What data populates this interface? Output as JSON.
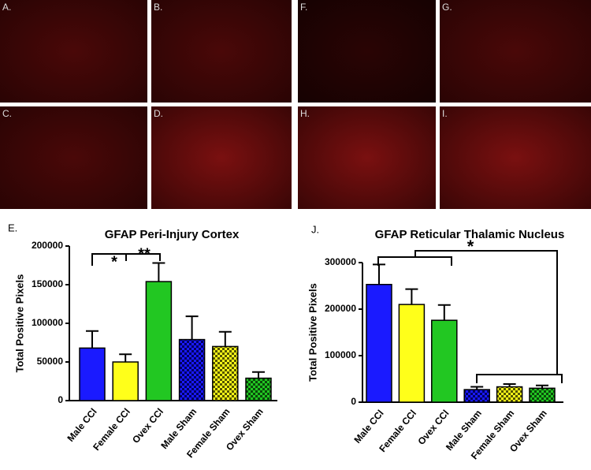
{
  "image_panels": [
    "A.",
    "B.",
    "C.",
    "D.",
    "F.",
    "G.",
    "H.",
    "I."
  ],
  "chart_data": [
    {
      "type": "bar",
      "panel_label": "E.",
      "title": "GFAP  Peri-Injury Cortex",
      "y_label": "Total  Positive Pixels",
      "categories": [
        "Male CCl",
        "Female CCl",
        "Ovex CCl",
        "Male Sham",
        "Female Sham",
        "Ovex Sham"
      ],
      "values": [
        68000,
        50000,
        154000,
        79000,
        70000,
        29000
      ],
      "errors": [
        22000,
        10000,
        24000,
        30000,
        19000,
        8000
      ],
      "colors": [
        "#1a1aff",
        "#ffff1a",
        "#22c722",
        "#1a1aff",
        "#ffff1a",
        "#22c722"
      ],
      "hatched": [
        false,
        false,
        false,
        true,
        true,
        true
      ],
      "ylim": [
        0,
        200000
      ],
      "yticks": [
        0,
        50000,
        100000,
        150000,
        200000
      ],
      "annotations": [
        "*",
        "**"
      ]
    },
    {
      "type": "bar",
      "panel_label": "J.",
      "title": "GFAP Reticular Thalamic Nucleus",
      "y_label": "Total  Positive Pixels",
      "categories": [
        "Male CCl",
        "Female CCl",
        "Ovex CCl",
        "Male Sham",
        "Female Sham",
        "Ovex Sham"
      ],
      "values": [
        253000,
        210000,
        176000,
        27000,
        33000,
        30000
      ],
      "errors": [
        43000,
        33000,
        33000,
        6000,
        6000,
        6000
      ],
      "colors": [
        "#1a1aff",
        "#ffff1a",
        "#22c722",
        "#1a1aff",
        "#ffff1a",
        "#22c722"
      ],
      "hatched": [
        false,
        false,
        false,
        true,
        true,
        true
      ],
      "ylim": [
        0,
        300000
      ],
      "yticks": [
        0,
        100000,
        200000,
        300000
      ],
      "annotations": [
        "*"
      ]
    }
  ]
}
